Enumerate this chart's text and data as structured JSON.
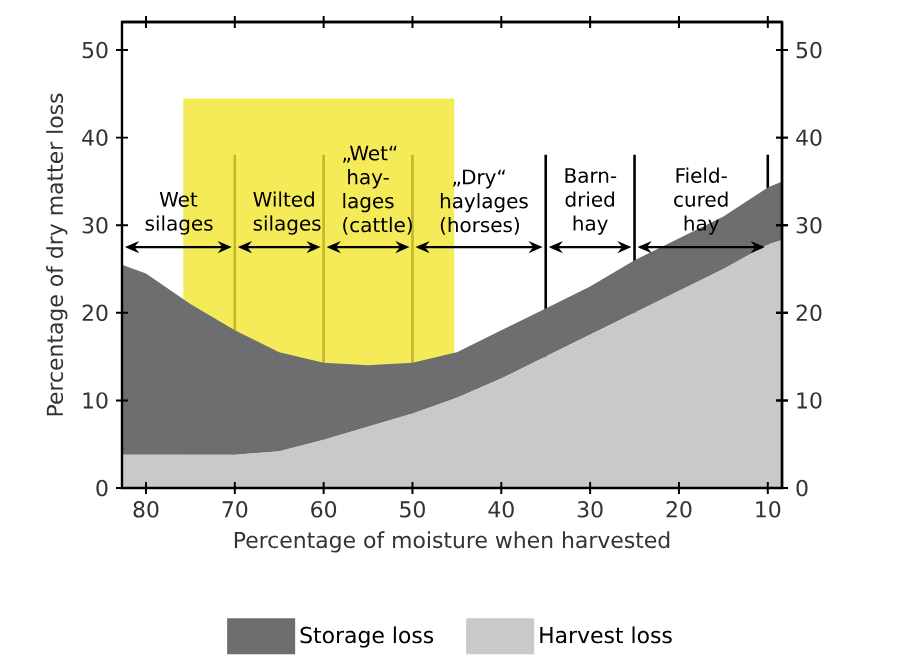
{
  "chart_data": {
    "type": "area",
    "stacked": true,
    "xlabel": "Percentage of moisture when harvested",
    "ylabel": "Percentage of dry matter loss",
    "x": [
      82.7,
      80,
      75,
      70,
      65,
      60,
      55,
      50,
      45,
      40,
      35,
      30,
      25,
      20,
      15,
      10,
      8.4
    ],
    "series": [
      {
        "name": "Harvest loss",
        "color": "#c8c9cb",
        "values": [
          3.8,
          3.8,
          3.8,
          3.8,
          4.2,
          5.5,
          7,
          8.5,
          10.3,
          12.5,
          15,
          17.5,
          20,
          22.5,
          25,
          27.8,
          28.3
        ]
      },
      {
        "name": "Storage loss",
        "color": "#6d6e70",
        "values": [
          21.7,
          20.7,
          17.2,
          14.2,
          11.3,
          8.8,
          7,
          5.8,
          5.2,
          5.5,
          5.5,
          5.5,
          6,
          6,
          6,
          6.5,
          6.7
        ]
      }
    ],
    "xlim": [
      82.7,
      8.4
    ],
    "xticks": [
      80,
      70,
      60,
      50,
      40,
      30,
      20,
      10
    ],
    "ylim": [
      0,
      53.2
    ],
    "yticks": [
      0,
      10,
      20,
      30,
      40,
      50
    ],
    "y2lim": [
      0,
      53.2
    ],
    "y2ticks": [
      0,
      10,
      20,
      30,
      40,
      50
    ],
    "bands": [
      {
        "axis": "x",
        "from": 75.8,
        "to": 45.3,
        "color": "#f2e62e"
      }
    ],
    "ref_lines": [
      {
        "axis": "x",
        "value": 70
      },
      {
        "axis": "x",
        "value": 60
      },
      {
        "axis": "x",
        "value": 50
      },
      {
        "axis": "x",
        "value": 35
      },
      {
        "axis": "x",
        "value": 25
      },
      {
        "axis": "x",
        "value": 10
      }
    ],
    "annotations": [
      "Wet silages",
      "Wilted silages",
      "„Wet“ hay-lages (cattle)",
      "„Dry“ haylages (horses)",
      "Barn-dried hay",
      "Field-cured hay"
    ],
    "legend": "bottom",
    "grid": false
  }
}
